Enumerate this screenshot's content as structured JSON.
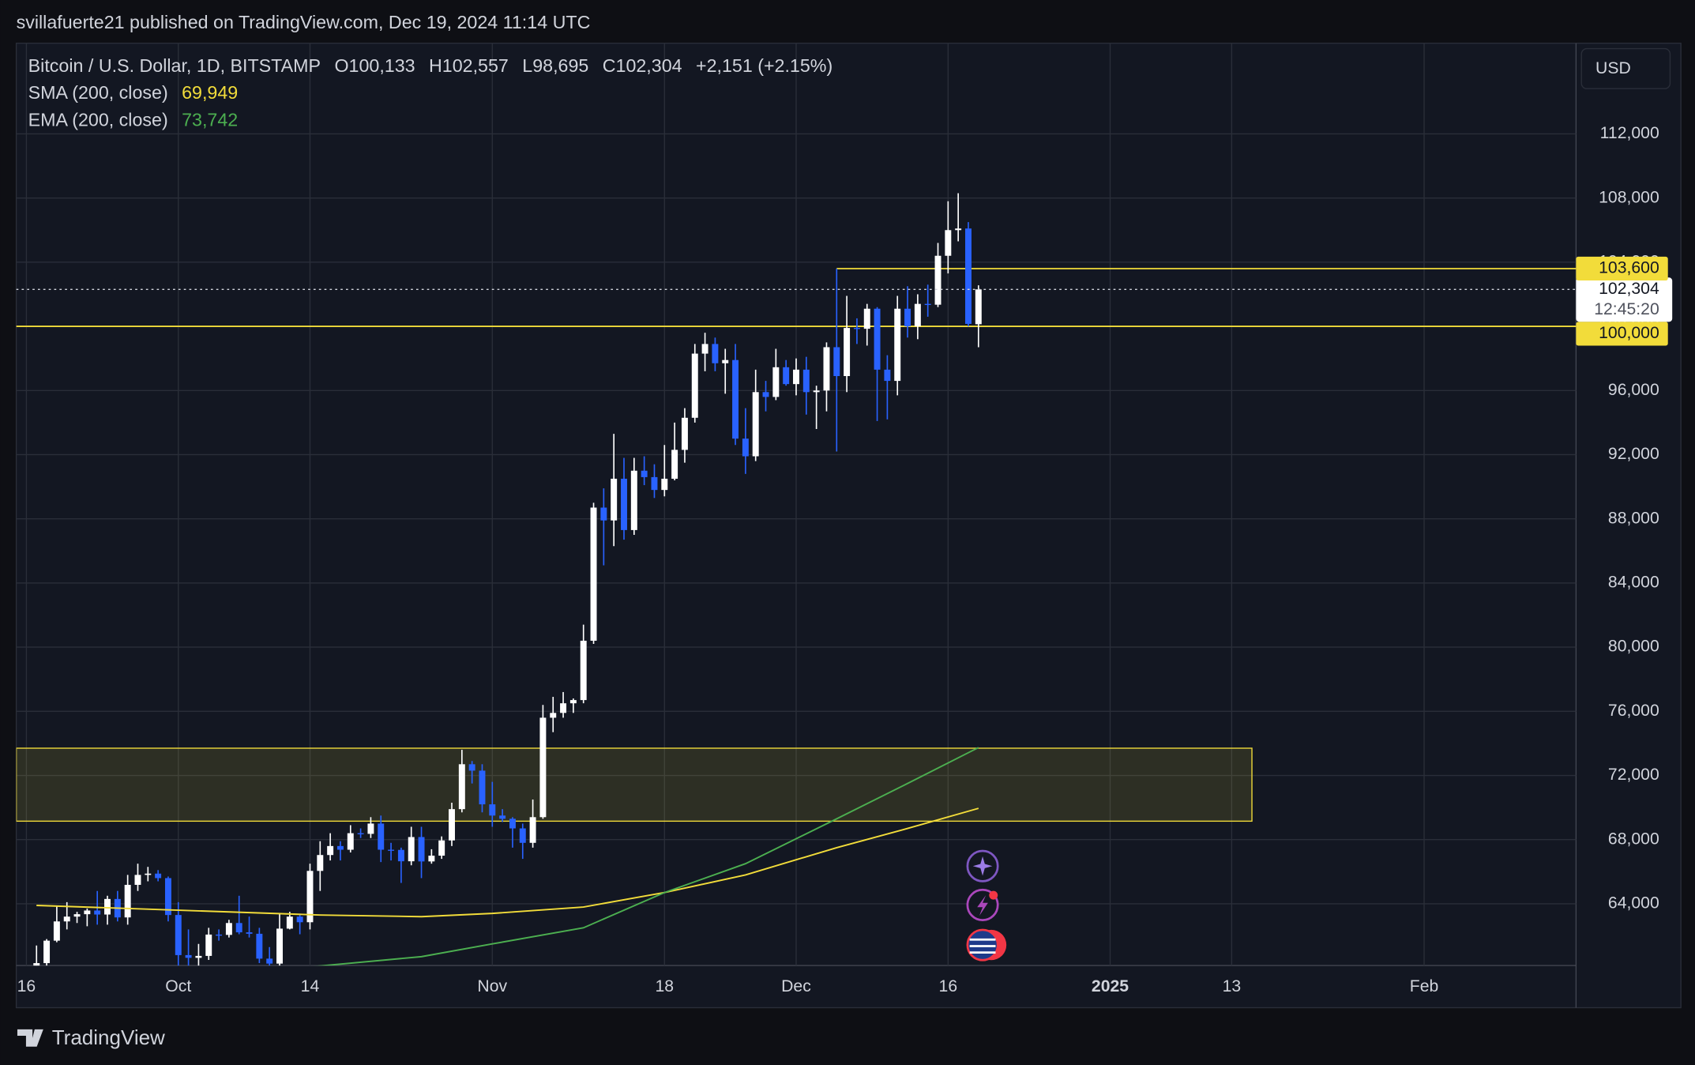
{
  "byline": "svillafuerte21 published on TradingView.com, Dec 19, 2024 11:14 UTC",
  "footer_brand": "TradingView",
  "chart_data": {
    "type": "candlestick",
    "title": "Bitcoin / U.S. Dollar, 1D, BITSTAMP",
    "ohlc_header": [
      "O100,133",
      "H102,557",
      "L98,695",
      "C102,304",
      "+2,151 (+2.15%)"
    ],
    "currency": "USD",
    "colors": {
      "up": "#ffffff",
      "down": "#2962ff"
    },
    "x": [
      "2024-09-17",
      "2024-09-18",
      "2024-09-19",
      "2024-09-20",
      "2024-09-21",
      "2024-09-22",
      "2024-09-23",
      "2024-09-24",
      "2024-09-25",
      "2024-09-26",
      "2024-09-27",
      "2024-09-28",
      "2024-09-29",
      "2024-09-30",
      "2024-10-01",
      "2024-10-02",
      "2024-10-03",
      "2024-10-04",
      "2024-10-05",
      "2024-10-06",
      "2024-10-07",
      "2024-10-08",
      "2024-10-09",
      "2024-10-10",
      "2024-10-11",
      "2024-10-12",
      "2024-10-13",
      "2024-10-14",
      "2024-10-15",
      "2024-10-16",
      "2024-10-17",
      "2024-10-18",
      "2024-10-19",
      "2024-10-20",
      "2024-10-21",
      "2024-10-22",
      "2024-10-23",
      "2024-10-24",
      "2024-10-25",
      "2024-10-26",
      "2024-10-27",
      "2024-10-28",
      "2024-10-29",
      "2024-10-30",
      "2024-10-31",
      "2024-11-01",
      "2024-11-02",
      "2024-11-03",
      "2024-11-04",
      "2024-11-05",
      "2024-11-06",
      "2024-11-07",
      "2024-11-08",
      "2024-11-09",
      "2024-11-10",
      "2024-11-11",
      "2024-11-12",
      "2024-11-13",
      "2024-11-14",
      "2024-11-15",
      "2024-11-16",
      "2024-11-17",
      "2024-11-18",
      "2024-11-19",
      "2024-11-20",
      "2024-11-21",
      "2024-11-22",
      "2024-11-23",
      "2024-11-24",
      "2024-11-25",
      "2024-11-26",
      "2024-11-27",
      "2024-11-28",
      "2024-11-29",
      "2024-11-30",
      "2024-12-01",
      "2024-12-02",
      "2024-12-03",
      "2024-12-04",
      "2024-12-05",
      "2024-12-06",
      "2024-12-07",
      "2024-12-08",
      "2024-12-09",
      "2024-12-10",
      "2024-12-11",
      "2024-12-12",
      "2024-12-13",
      "2024-12-14",
      "2024-12-15",
      "2024-12-16",
      "2024-12-17",
      "2024-12-18",
      "2024-12-19"
    ],
    "open": [
      58200,
      60300,
      61700,
      62900,
      63200,
      63350,
      63580,
      63330,
      64300,
      63150,
      65180,
      65800,
      65880,
      65600,
      63300,
      60800,
      60630,
      60750,
      62080,
      62060,
      62800,
      62220,
      62130,
      60580,
      60270,
      62450,
      63200,
      62850,
      66050,
      67040,
      67600,
      67370,
      68400,
      68360,
      69000,
      67370,
      67360,
      66650,
      68160,
      66640,
      67000,
      67950,
      69900,
      72700,
      72300,
      70200,
      69500,
      69300,
      68700,
      67800,
      69400,
      75600,
      75900,
      76500,
      76700,
      80400,
      88700,
      87900,
      90500,
      87300,
      91000,
      90600,
      89800,
      90500,
      92300,
      94300,
      98300,
      98900,
      97700,
      97900,
      93000,
      91900,
      95900,
      95600,
      97450,
      96400,
      97300,
      95900,
      96000,
      98700,
      96900,
      99900,
      99850,
      101100,
      97300,
      96600,
      101100,
      100000,
      101400,
      101350,
      104400,
      106000,
      106100,
      100133
    ],
    "high": [
      61400,
      61800,
      63900,
      64100,
      63500,
      63700,
      64800,
      64500,
      64800,
      65800,
      66500,
      66300,
      66100,
      65700,
      64100,
      62400,
      61500,
      62500,
      62400,
      63000,
      64500,
      63200,
      62500,
      61300,
      63400,
      63500,
      63300,
      66500,
      67900,
      68400,
      67900,
      68900,
      68700,
      69400,
      69500,
      67800,
      67500,
      68800,
      68800,
      67400,
      68200,
      70300,
      73600,
      72900,
      72700,
      71600,
      69900,
      69400,
      69000,
      70500,
      76400,
      76900,
      77200,
      76800,
      81400,
      89000,
      89900,
      93300,
      91800,
      91800,
      91900,
      91400,
      92600,
      94000,
      94900,
      98900,
      99600,
      99300,
      98600,
      98900,
      94900,
      97300,
      96600,
      98600,
      97900,
      98000,
      98100,
      96300,
      99000,
      103600,
      101900,
      100500,
      101400,
      101200,
      98200,
      101900,
      102500,
      102000,
      102600,
      105200,
      107800,
      108300,
      106500,
      102557
    ],
    "low": [
      57600,
      59200,
      61600,
      62400,
      62800,
      62600,
      62700,
      62700,
      62900,
      62700,
      64800,
      65400,
      65400,
      62900,
      60100,
      60000,
      59900,
      60500,
      61700,
      61900,
      62100,
      61900,
      60300,
      58900,
      60100,
      62400,
      62100,
      62400,
      64800,
      66700,
      66700,
      67200,
      68100,
      68100,
      66600,
      66700,
      65300,
      66400,
      65600,
      66500,
      66800,
      67600,
      69700,
      71500,
      69700,
      68800,
      69100,
      67500,
      66800,
      67500,
      69300,
      74700,
      75600,
      75900,
      76500,
      80200,
      85100,
      86300,
      86700,
      87000,
      90100,
      89300,
      89400,
      90400,
      91500,
      94000,
      97200,
      97200,
      95800,
      92600,
      90800,
      91600,
      94700,
      95400,
      96300,
      95700,
      94500,
      93600,
      94700,
      92200,
      95900,
      98900,
      98800,
      94100,
      94200,
      95700,
      99300,
      99200,
      100600,
      101200,
      103300,
      105300,
      100000,
      98695
    ],
    "close": [
      60300,
      61700,
      62900,
      63200,
      63350,
      63580,
      63330,
      64300,
      63150,
      65180,
      65800,
      65880,
      65600,
      63300,
      60800,
      60630,
      60750,
      62080,
      62060,
      62800,
      62220,
      62130,
      60580,
      60270,
      62450,
      63200,
      62850,
      66050,
      67040,
      67600,
      67370,
      68400,
      68360,
      69000,
      67370,
      67360,
      66650,
      68160,
      66640,
      67000,
      67950,
      69900,
      72700,
      72300,
      70200,
      69500,
      69300,
      68700,
      67800,
      69400,
      75600,
      75900,
      76500,
      76700,
      80400,
      88700,
      87900,
      90500,
      87300,
      91000,
      90600,
      89800,
      90500,
      92300,
      94300,
      98300,
      98900,
      97700,
      97900,
      93000,
      91900,
      95900,
      95600,
      97450,
      96400,
      97300,
      95900,
      96000,
      98700,
      96900,
      99900,
      99850,
      101100,
      97300,
      96600,
      101100,
      100000,
      101400,
      101350,
      104400,
      106000,
      106100,
      100153,
      102304
    ],
    "indicators": [
      {
        "name": "SMA (200, close)",
        "value_label": "69,949",
        "color": "#f2dc3a",
        "x": [
          "2024-09-17",
          "2024-10-01",
          "2024-10-15",
          "2024-10-25",
          "2024-11-01",
          "2024-11-10",
          "2024-11-18",
          "2024-11-26",
          "2024-12-05",
          "2024-12-12",
          "2024-12-19"
        ],
        "values": [
          63900,
          63600,
          63300,
          63200,
          63400,
          63800,
          64700,
          65800,
          67500,
          68700,
          69949
        ]
      },
      {
        "name": "EMA (200, close)",
        "value_label": "73,742",
        "color": "#4caf50",
        "x": [
          "2024-10-12",
          "2024-10-25",
          "2024-11-01",
          "2024-11-10",
          "2024-11-18",
          "2024-11-26",
          "2024-12-05",
          "2024-12-12",
          "2024-12-19"
        ],
        "values": [
          59950,
          60700,
          61500,
          62500,
          64700,
          66500,
          69300,
          71500,
          73742
        ]
      }
    ],
    "levels": [
      {
        "value": 103600,
        "label": "103,600",
        "x0": "2024-12-05",
        "color": "#f2dc3a"
      },
      {
        "value": 100000,
        "label": "100,000",
        "color": "#f2dc3a"
      }
    ],
    "last_price": {
      "value": 102304,
      "label": "102,304",
      "countdown": "12:45:20"
    },
    "zone": {
      "low": 69150,
      "high": 73700,
      "x0": "2024-09-15",
      "x1": "2025-01-15",
      "color": "#f2dc3a"
    },
    "xlim": [
      "2024-09-15",
      "2025-02-16"
    ],
    "xticks": [
      {
        "value": "2024-09-16",
        "label": "16"
      },
      {
        "value": "2024-10-01",
        "label": "Oct"
      },
      {
        "value": "2024-10-14",
        "label": "14"
      },
      {
        "value": "2024-11-01",
        "label": "Nov"
      },
      {
        "value": "2024-11-18",
        "label": "18"
      },
      {
        "value": "2024-12-01",
        "label": "Dec"
      },
      {
        "value": "2024-12-16",
        "label": "16"
      },
      {
        "value": "2025-01-01",
        "label": "2025"
      },
      {
        "value": "2025-01-13",
        "label": "13"
      },
      {
        "value": "2025-02-01",
        "label": "Feb"
      }
    ],
    "ylim": [
      60150,
      117650
    ],
    "yticks": [
      {
        "value": 64000,
        "label": "64,000"
      },
      {
        "value": 68000,
        "label": "68,000"
      },
      {
        "value": 72000,
        "label": "72,000"
      },
      {
        "value": 76000,
        "label": "76,000"
      },
      {
        "value": 80000,
        "label": "80,000"
      },
      {
        "value": 84000,
        "label": "84,000"
      },
      {
        "value": 88000,
        "label": "88,000"
      },
      {
        "value": 92000,
        "label": "92,000"
      },
      {
        "value": 96000,
        "label": "96,000"
      },
      {
        "value": 100000,
        "label": "100,000"
      },
      {
        "value": 104000,
        "label": "104,000"
      },
      {
        "value": 108000,
        "label": "108,000"
      },
      {
        "value": 112000,
        "label": "112,000"
      }
    ],
    "grid": true
  }
}
